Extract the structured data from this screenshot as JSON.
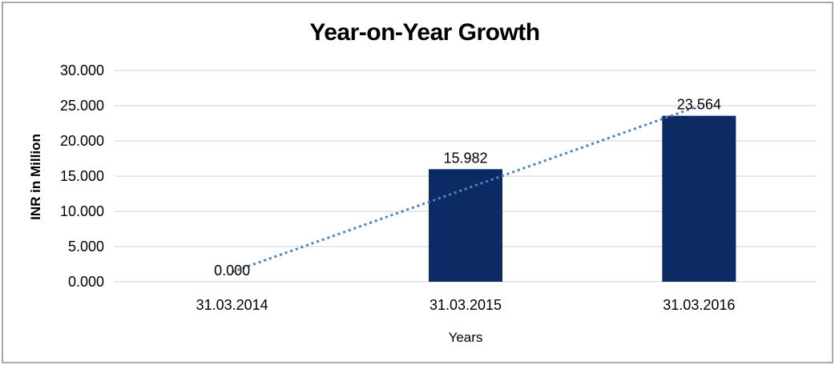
{
  "frame": {
    "border_color": "#A9A9A9",
    "background": "#FFFFFF"
  },
  "chart_data": {
    "type": "bar",
    "title": "Year-on-Year Growth",
    "categories": [
      "31.03.2014",
      "31.03.2015",
      "31.03.2016"
    ],
    "values": [
      0.0,
      15.982,
      23.564
    ],
    "value_labels": [
      "0.000",
      "15.982",
      "23.564"
    ],
    "xlabel": "Years",
    "ylabel": "INR in Million",
    "ylim": [
      0,
      30
    ],
    "ytick_values": [
      0,
      5,
      10,
      15,
      20,
      25,
      30
    ],
    "ytick_labels": [
      "0.000",
      "5.000",
      "10.000",
      "15.000",
      "20.000",
      "25.000",
      "30.000"
    ],
    "grid": true,
    "legend_position": "none",
    "bar_color": "#0C2A64",
    "gridline_color": "#D9D9D9",
    "text_color": "#000000",
    "trendline": {
      "type": "linear",
      "style": "dotted",
      "color": "#4E82C0",
      "start_value": 1.4,
      "end_value": 24.964,
      "from_category_index": 0,
      "to_category_index": 2
    }
  }
}
